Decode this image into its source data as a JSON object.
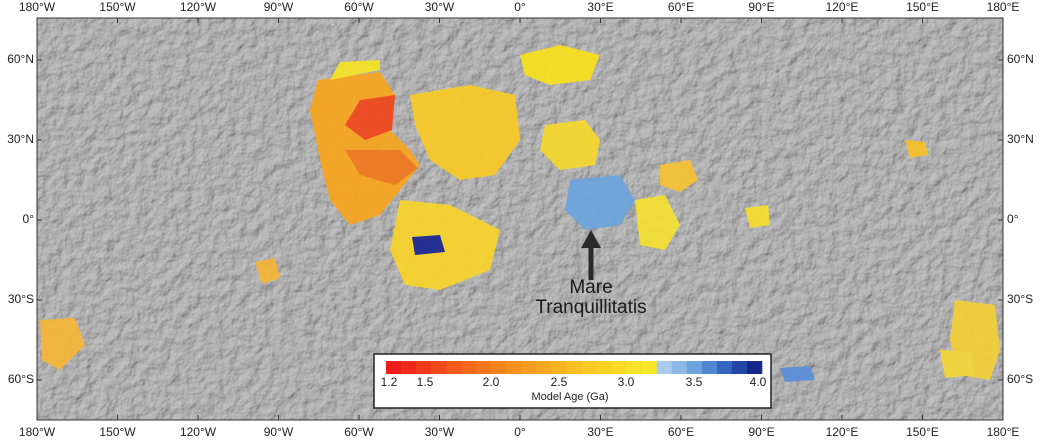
{
  "map": {
    "longitude_labels": [
      "180°W",
      "150°W",
      "120°W",
      "90°W",
      "60°W",
      "30°W",
      "0°",
      "30°E",
      "60°E",
      "90°E",
      "120°E",
      "150°E",
      "180°E"
    ],
    "latitude_labels": [
      "60°N",
      "30°N",
      "0°",
      "30°S",
      "60°S"
    ],
    "annotation": [
      "Mare",
      "Tranquillitatis"
    ],
    "colorbar": {
      "tick_labels": [
        "1.2",
        "1.5",
        "2.0",
        "2.5",
        "3.0",
        "3.5",
        "4.0"
      ],
      "label": "Model Age (Ga)"
    }
  }
}
